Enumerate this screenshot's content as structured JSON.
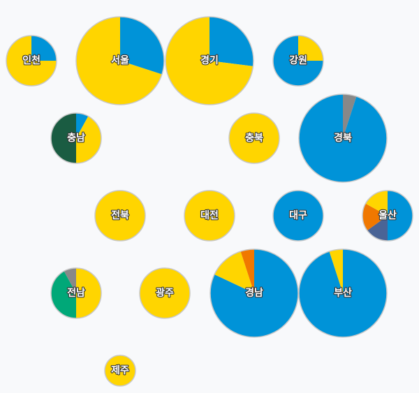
{
  "chart_data": {
    "type": "pie",
    "colors": {
      "blue": "#0093d8",
      "yellow": "#ffd500",
      "darkgreen": "#1a5c42",
      "green": "#00a878",
      "gray": "#888888",
      "orange": "#f07800",
      "slate": "#4a6496",
      "outline": "#c8c8c8"
    },
    "regions": [
      {
        "name": "인천",
        "size": "small",
        "slices": [
          {
            "color": "blue",
            "value": 25
          },
          {
            "color": "yellow",
            "value": 75
          }
        ]
      },
      {
        "name": "서울",
        "size": "large",
        "slices": [
          {
            "color": "blue",
            "value": 30
          },
          {
            "color": "yellow",
            "value": 70
          }
        ]
      },
      {
        "name": "경기",
        "size": "large",
        "slices": [
          {
            "color": "blue",
            "value": 27
          },
          {
            "color": "yellow",
            "value": 73
          }
        ]
      },
      {
        "name": "강원",
        "size": "small",
        "slices": [
          {
            "color": "yellow",
            "value": 25
          },
          {
            "color": "blue",
            "value": 75
          }
        ]
      },
      {
        "name": "충남",
        "size": "small",
        "slices": [
          {
            "color": "blue",
            "value": 8
          },
          {
            "color": "yellow",
            "value": 42
          },
          {
            "color": "darkgreen",
            "value": 50
          }
        ]
      },
      {
        "name": "충북",
        "size": "small",
        "slices": [
          {
            "color": "yellow",
            "value": 100
          }
        ]
      },
      {
        "name": "경북",
        "size": "large",
        "slices": [
          {
            "color": "gray",
            "value": 5
          },
          {
            "color": "blue",
            "value": 95
          }
        ]
      },
      {
        "name": "전북",
        "size": "small",
        "slices": [
          {
            "color": "yellow",
            "value": 100
          }
        ]
      },
      {
        "name": "대전",
        "size": "small",
        "slices": [
          {
            "color": "yellow",
            "value": 100
          }
        ]
      },
      {
        "name": "대구",
        "size": "small",
        "slices": [
          {
            "color": "blue",
            "value": 100
          }
        ]
      },
      {
        "name": "울산",
        "size": "small",
        "slices": [
          {
            "color": "blue",
            "value": 50
          },
          {
            "color": "slate",
            "value": 15
          },
          {
            "color": "orange",
            "value": 18
          },
          {
            "color": "yellow",
            "value": 17
          }
        ]
      },
      {
        "name": "전남",
        "size": "small",
        "slices": [
          {
            "color": "yellow",
            "value": 50
          },
          {
            "color": "green",
            "value": 42
          },
          {
            "color": "gray",
            "value": 8
          }
        ]
      },
      {
        "name": "광주",
        "size": "small",
        "slices": [
          {
            "color": "yellow",
            "value": 100
          }
        ]
      },
      {
        "name": "경남",
        "size": "large",
        "slices": [
          {
            "color": "blue",
            "value": 82
          },
          {
            "color": "yellow",
            "value": 13
          },
          {
            "color": "orange",
            "value": 5
          }
        ]
      },
      {
        "name": "부산",
        "size": "large",
        "slices": [
          {
            "color": "blue",
            "value": 95
          },
          {
            "color": "yellow",
            "value": 5
          }
        ]
      },
      {
        "name": "제주",
        "size": "xsmall",
        "slices": [
          {
            "color": "yellow",
            "value": 100
          }
        ]
      }
    ]
  }
}
